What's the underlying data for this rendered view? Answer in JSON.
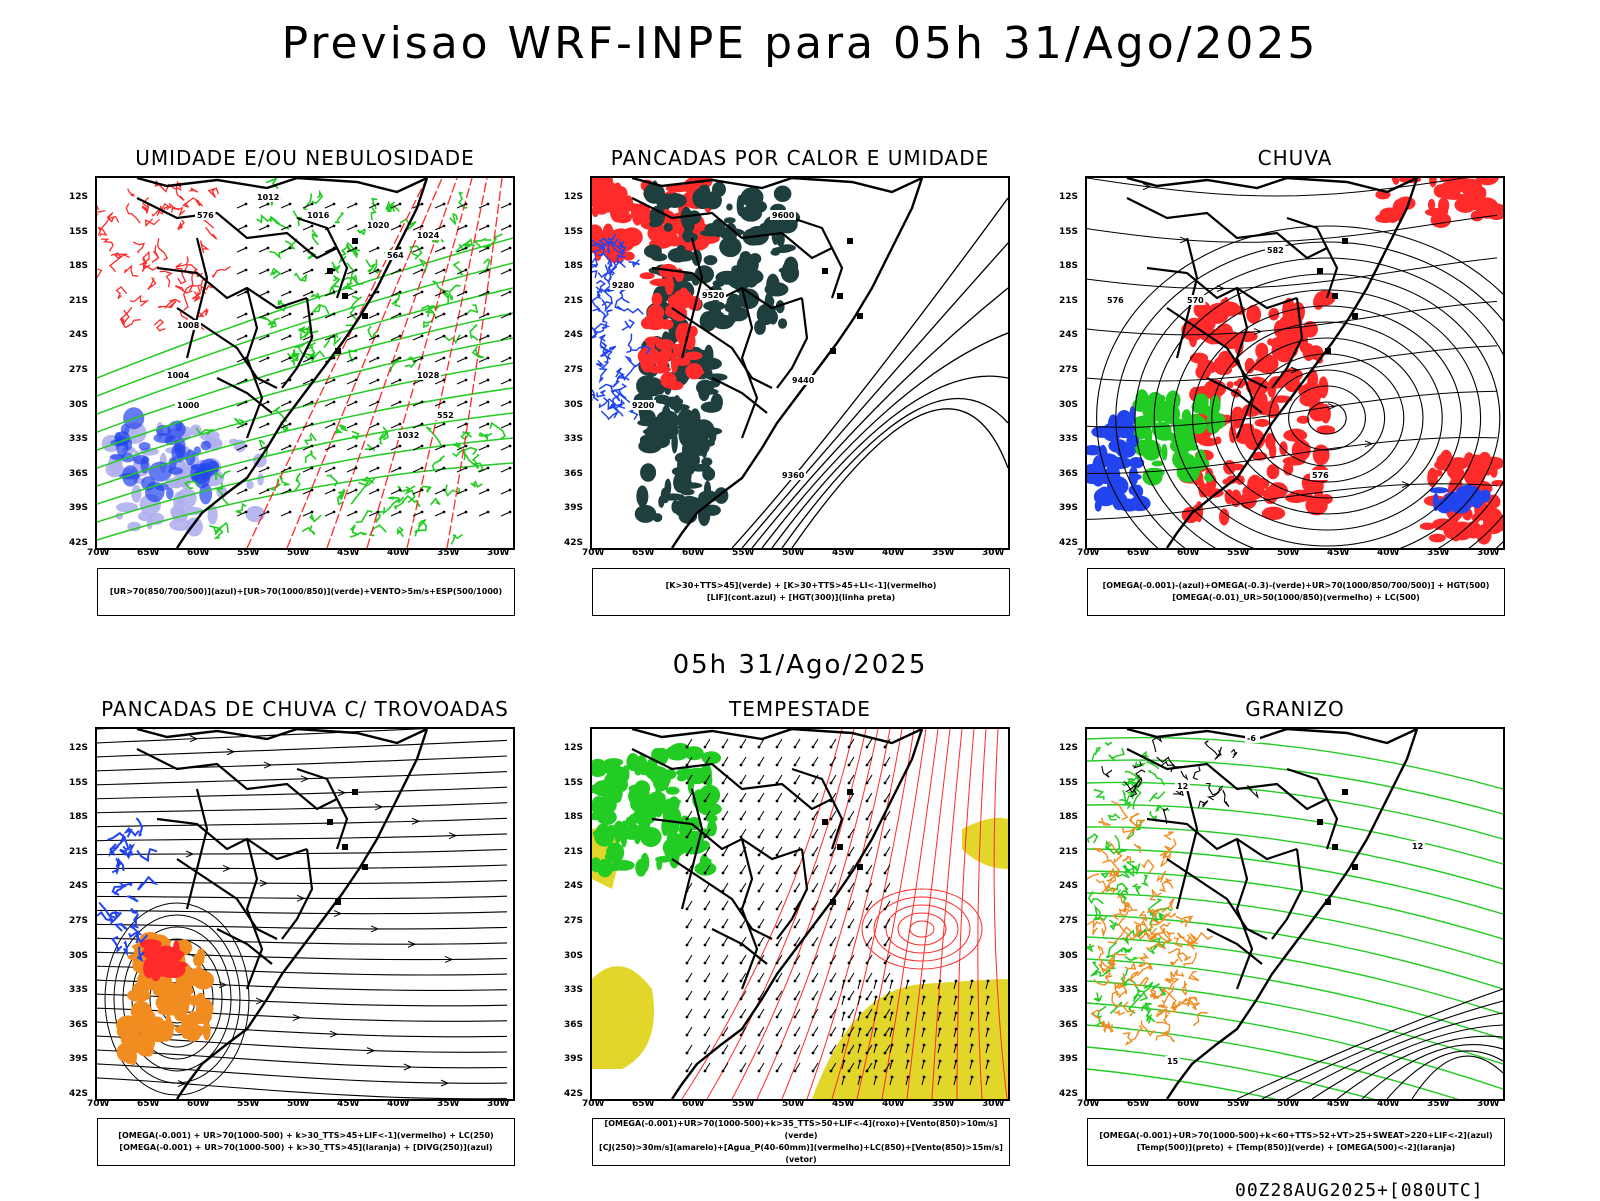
{
  "title": "Previsao WRF-INPE  para 05h 31/Ago/2025",
  "middle_title": "05h 31/Ago/2025",
  "footer": "00Z28AUG2025+[080UTC]",
  "lat_labels": [
    "12S",
    "15S",
    "18S",
    "21S",
    "24S",
    "27S",
    "30S",
    "33S",
    "36S",
    "39S",
    "42S"
  ],
  "lon_labels": [
    "70W",
    "65W",
    "60W",
    "55W",
    "50W",
    "45W",
    "40W",
    "35W",
    "30W"
  ],
  "panels": [
    {
      "title": "UMIDADE E/OU NEBULOSIDADE",
      "legend": [
        "[UR>70(850/700/500)](azul)+[UR>70(1000/850)](verde)+VENTO>5m/s+ESP(500/1000)"
      ],
      "contour_labels": [
        "1012",
        "1016",
        "1020",
        "1024",
        "1028",
        "1032",
        "1008",
        "1004",
        "1000",
        "576",
        "564",
        "552"
      ]
    },
    {
      "title": "PANCADAS POR CALOR E UMIDADE",
      "legend": [
        "[K>30+TTS>45](verde) + [K>30+TTS>45+LI<-1](vermelho)",
        "[LIF](cont.azul) + [HGT(300)](linha preta)"
      ],
      "contour_labels": [
        "9600",
        "9520",
        "9440",
        "9360",
        "9280",
        "9200"
      ]
    },
    {
      "title": "CHUVA",
      "legend": [
        "[OMEGA(-0.001)-(azul)+OMEGA(-0.3)-(verde)+UR>70(1000/850/700/500)] + HGT(500)",
        "[OMEGA(-0.01)_UR>50(1000/850)(vermelho) + LC(500)"
      ],
      "contour_labels": [
        "582",
        "576",
        "570",
        "576"
      ]
    },
    {
      "title": "PANCADAS DE CHUVA C/ TROVOADAS",
      "legend": [
        "[OMEGA(-0.001) + UR>70(1000-500) + k>30_TTS>45+LIF<-1](vermelho) + LC(250)",
        "[OMEGA(-0.001) + UR>70(1000-500) + k>30_TTS>45](laranja) + [DIVG(250)](azul)"
      ],
      "contour_labels": []
    },
    {
      "title": "TEMPESTADE",
      "legend": [
        "[OMEGA(-0.001)+UR>70(1000-500)+k>35_TTS>50+LIF<-4](roxo)+[Vento(850)>10m/s](verde)",
        "[CJ(250)>30m/s](amarelo)+[Agua_P(40-60mm)](vermelho)+LC(850)+[Vento(850)>15m/s](vetor)"
      ],
      "contour_labels": []
    },
    {
      "title": "GRANIZO",
      "legend": [
        "[OMEGA(-0.001)+UR>70(1000-500)+k<60+TTS>52+VT>25+SWEAT>220+LIF<-2](azul)",
        "[Temp(500)](preto) + [Temp(850)](verde) + [OMEGA(500)<-2](laranja)"
      ],
      "contour_labels": [
        "12",
        "12",
        "-6",
        "15"
      ]
    }
  ],
  "colors": {
    "red": "#ff2a2a",
    "green": "#22cc22",
    "blue": "#2244ee",
    "lavender": "#b0b0f0",
    "dark_teal": "#1f3f3f",
    "orange": "#f08c20",
    "yellow": "#e3d62a",
    "black": "#000000"
  }
}
